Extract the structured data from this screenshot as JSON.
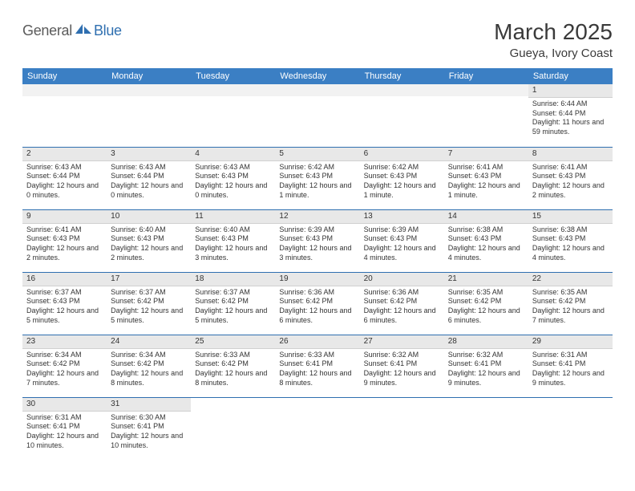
{
  "logo": {
    "general": "General",
    "blue": "Blue"
  },
  "title": "March 2025",
  "location": "Gueya, Ivory Coast",
  "colors": {
    "header_bg": "#3b7fc4",
    "header_text": "#ffffff",
    "row_divider": "#2f6fb0",
    "daynum_bg": "#e8e8e8",
    "empty_bg": "#f2f2f2",
    "text": "#333333",
    "logo_general": "#5a5a5a",
    "logo_blue": "#2f6fb0"
  },
  "day_headers": [
    "Sunday",
    "Monday",
    "Tuesday",
    "Wednesday",
    "Thursday",
    "Friday",
    "Saturday"
  ],
  "weeks": [
    [
      {
        "empty": true
      },
      {
        "empty": true
      },
      {
        "empty": true
      },
      {
        "empty": true
      },
      {
        "empty": true
      },
      {
        "empty": true
      },
      {
        "num": "1",
        "sunrise": "Sunrise: 6:44 AM",
        "sunset": "Sunset: 6:44 PM",
        "daylight": "Daylight: 11 hours and 59 minutes."
      }
    ],
    [
      {
        "num": "2",
        "sunrise": "Sunrise: 6:43 AM",
        "sunset": "Sunset: 6:44 PM",
        "daylight": "Daylight: 12 hours and 0 minutes."
      },
      {
        "num": "3",
        "sunrise": "Sunrise: 6:43 AM",
        "sunset": "Sunset: 6:44 PM",
        "daylight": "Daylight: 12 hours and 0 minutes."
      },
      {
        "num": "4",
        "sunrise": "Sunrise: 6:43 AM",
        "sunset": "Sunset: 6:43 PM",
        "daylight": "Daylight: 12 hours and 0 minutes."
      },
      {
        "num": "5",
        "sunrise": "Sunrise: 6:42 AM",
        "sunset": "Sunset: 6:43 PM",
        "daylight": "Daylight: 12 hours and 1 minute."
      },
      {
        "num": "6",
        "sunrise": "Sunrise: 6:42 AM",
        "sunset": "Sunset: 6:43 PM",
        "daylight": "Daylight: 12 hours and 1 minute."
      },
      {
        "num": "7",
        "sunrise": "Sunrise: 6:41 AM",
        "sunset": "Sunset: 6:43 PM",
        "daylight": "Daylight: 12 hours and 1 minute."
      },
      {
        "num": "8",
        "sunrise": "Sunrise: 6:41 AM",
        "sunset": "Sunset: 6:43 PM",
        "daylight": "Daylight: 12 hours and 2 minutes."
      }
    ],
    [
      {
        "num": "9",
        "sunrise": "Sunrise: 6:41 AM",
        "sunset": "Sunset: 6:43 PM",
        "daylight": "Daylight: 12 hours and 2 minutes."
      },
      {
        "num": "10",
        "sunrise": "Sunrise: 6:40 AM",
        "sunset": "Sunset: 6:43 PM",
        "daylight": "Daylight: 12 hours and 2 minutes."
      },
      {
        "num": "11",
        "sunrise": "Sunrise: 6:40 AM",
        "sunset": "Sunset: 6:43 PM",
        "daylight": "Daylight: 12 hours and 3 minutes."
      },
      {
        "num": "12",
        "sunrise": "Sunrise: 6:39 AM",
        "sunset": "Sunset: 6:43 PM",
        "daylight": "Daylight: 12 hours and 3 minutes."
      },
      {
        "num": "13",
        "sunrise": "Sunrise: 6:39 AM",
        "sunset": "Sunset: 6:43 PM",
        "daylight": "Daylight: 12 hours and 4 minutes."
      },
      {
        "num": "14",
        "sunrise": "Sunrise: 6:38 AM",
        "sunset": "Sunset: 6:43 PM",
        "daylight": "Daylight: 12 hours and 4 minutes."
      },
      {
        "num": "15",
        "sunrise": "Sunrise: 6:38 AM",
        "sunset": "Sunset: 6:43 PM",
        "daylight": "Daylight: 12 hours and 4 minutes."
      }
    ],
    [
      {
        "num": "16",
        "sunrise": "Sunrise: 6:37 AM",
        "sunset": "Sunset: 6:43 PM",
        "daylight": "Daylight: 12 hours and 5 minutes."
      },
      {
        "num": "17",
        "sunrise": "Sunrise: 6:37 AM",
        "sunset": "Sunset: 6:42 PM",
        "daylight": "Daylight: 12 hours and 5 minutes."
      },
      {
        "num": "18",
        "sunrise": "Sunrise: 6:37 AM",
        "sunset": "Sunset: 6:42 PM",
        "daylight": "Daylight: 12 hours and 5 minutes."
      },
      {
        "num": "19",
        "sunrise": "Sunrise: 6:36 AM",
        "sunset": "Sunset: 6:42 PM",
        "daylight": "Daylight: 12 hours and 6 minutes."
      },
      {
        "num": "20",
        "sunrise": "Sunrise: 6:36 AM",
        "sunset": "Sunset: 6:42 PM",
        "daylight": "Daylight: 12 hours and 6 minutes."
      },
      {
        "num": "21",
        "sunrise": "Sunrise: 6:35 AM",
        "sunset": "Sunset: 6:42 PM",
        "daylight": "Daylight: 12 hours and 6 minutes."
      },
      {
        "num": "22",
        "sunrise": "Sunrise: 6:35 AM",
        "sunset": "Sunset: 6:42 PM",
        "daylight": "Daylight: 12 hours and 7 minutes."
      }
    ],
    [
      {
        "num": "23",
        "sunrise": "Sunrise: 6:34 AM",
        "sunset": "Sunset: 6:42 PM",
        "daylight": "Daylight: 12 hours and 7 minutes."
      },
      {
        "num": "24",
        "sunrise": "Sunrise: 6:34 AM",
        "sunset": "Sunset: 6:42 PM",
        "daylight": "Daylight: 12 hours and 8 minutes."
      },
      {
        "num": "25",
        "sunrise": "Sunrise: 6:33 AM",
        "sunset": "Sunset: 6:42 PM",
        "daylight": "Daylight: 12 hours and 8 minutes."
      },
      {
        "num": "26",
        "sunrise": "Sunrise: 6:33 AM",
        "sunset": "Sunset: 6:41 PM",
        "daylight": "Daylight: 12 hours and 8 minutes."
      },
      {
        "num": "27",
        "sunrise": "Sunrise: 6:32 AM",
        "sunset": "Sunset: 6:41 PM",
        "daylight": "Daylight: 12 hours and 9 minutes."
      },
      {
        "num": "28",
        "sunrise": "Sunrise: 6:32 AM",
        "sunset": "Sunset: 6:41 PM",
        "daylight": "Daylight: 12 hours and 9 minutes."
      },
      {
        "num": "29",
        "sunrise": "Sunrise: 6:31 AM",
        "sunset": "Sunset: 6:41 PM",
        "daylight": "Daylight: 12 hours and 9 minutes."
      }
    ],
    [
      {
        "num": "30",
        "sunrise": "Sunrise: 6:31 AM",
        "sunset": "Sunset: 6:41 PM",
        "daylight": "Daylight: 12 hours and 10 minutes."
      },
      {
        "num": "31",
        "sunrise": "Sunrise: 6:30 AM",
        "sunset": "Sunset: 6:41 PM",
        "daylight": "Daylight: 12 hours and 10 minutes."
      },
      {
        "blank": true
      },
      {
        "blank": true
      },
      {
        "blank": true
      },
      {
        "blank": true
      },
      {
        "blank": true
      }
    ]
  ]
}
